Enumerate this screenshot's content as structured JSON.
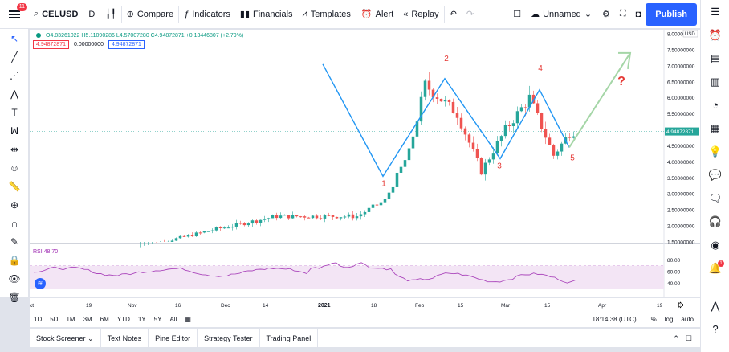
{
  "header": {
    "menu_badge": "11",
    "symbol": "CELUSD",
    "interval": "D",
    "compare_label": "Compare",
    "indicators_label": "Indicators",
    "financials_label": "Financials",
    "templates_label": "Templates",
    "alert_label": "Alert",
    "replay_label": "Replay",
    "layout_name": "Unnamed",
    "publish_label": "Publish"
  },
  "legend": {
    "ohlc": "O4.83261022 H5.11090286 L4.57007280 C4.94872871 +0.13446807 (+2.79%)",
    "box1": "4.94872871",
    "box2": "0.00000000",
    "box3": "4.94872871",
    "rsi": "RSI  48.70"
  },
  "price_axis": {
    "currency": "USD",
    "ticks": [
      "8.00000000",
      "7.50000000",
      "7.00000000",
      "6.50000000",
      "6.00000000",
      "5.50000000",
      "5.00000000",
      "4.50000000",
      "4.00000000",
      "3.50000000",
      "3.00000000",
      "2.50000000",
      "2.00000000",
      "1.50000000"
    ],
    "last_price": "4.94872871",
    "rsi_ticks": [
      "80.00",
      "60.00",
      "40.00"
    ]
  },
  "time_axis": {
    "labels": [
      "ct",
      "19",
      "Nov",
      "16",
      "Dec",
      "14",
      "2021",
      "18",
      "Feb",
      "15",
      "Mar",
      "15",
      "Apr",
      "19"
    ]
  },
  "annotations": {
    "wave_labels": [
      "1",
      "2",
      "3",
      "4",
      "5"
    ],
    "question": "?"
  },
  "range_bar": {
    "ranges": [
      "1D",
      "5D",
      "1M",
      "3M",
      "6M",
      "YTD",
      "1Y",
      "5Y",
      "All"
    ],
    "time": "18:14:38 (UTC)",
    "percent": "%",
    "log": "log",
    "auto": "auto"
  },
  "bottom_panel": {
    "tabs": [
      "Stock Screener",
      "Text Notes",
      "Pine Editor",
      "Strategy Tester",
      "Trading Panel"
    ]
  },
  "colors": {
    "up": "#26a69a",
    "down": "#ef5350",
    "wave": "#2196f3",
    "projection": "#a5d6a7",
    "label": "#e53935",
    "rsi_line": "#ab47bc",
    "rsi_band": "#f3e5f5"
  }
}
